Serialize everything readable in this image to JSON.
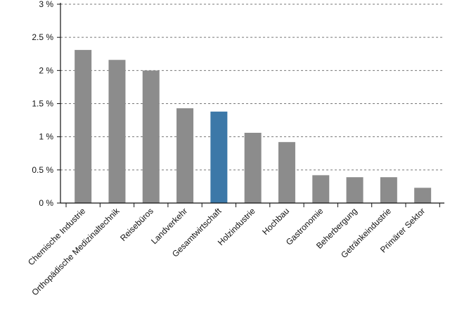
{
  "chart_data": {
    "type": "bar",
    "title": "",
    "xlabel": "",
    "ylabel": "",
    "ylim": [
      0,
      3
    ],
    "grid": true,
    "y_ticks": [
      {
        "value": 0,
        "label": "0 %"
      },
      {
        "value": 0.5,
        "label": "0.5 %"
      },
      {
        "value": 1,
        "label": "1 %"
      },
      {
        "value": 1.5,
        "label": "1.5 %"
      },
      {
        "value": 2,
        "label": "2 %"
      },
      {
        "value": 2.5,
        "label": "2.5 %"
      },
      {
        "value": 3,
        "label": "3 %"
      }
    ],
    "categories": [
      "Chemische Industrie",
      "Orthopädische Medizinaltechnik",
      "Reisebüros",
      "Landverkehr",
      "Gesamtwirtschaft",
      "Holzindustrie",
      "Hochbau",
      "Gastronomie",
      "Beherbergung",
      "Getränkeindustrie",
      "Primärer Sektor"
    ],
    "values": [
      2.31,
      2.16,
      2.0,
      1.43,
      1.38,
      1.06,
      0.92,
      0.42,
      0.39,
      0.39,
      0.23
    ],
    "highlight_category": "Gesamtwirtschaft",
    "colors": {
      "bar": "#8c8c8c",
      "highlight": "#3c78a8",
      "axis": "#111111",
      "grid": "#777777"
    }
  }
}
